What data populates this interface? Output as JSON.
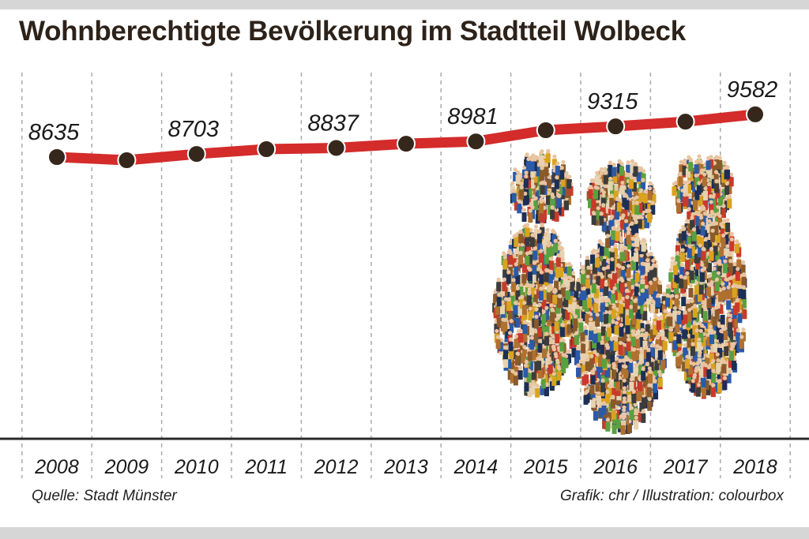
{
  "chart_data": {
    "type": "line",
    "title": "Wohnberechtigte Bevölkerung im Stadtteil Wolbeck",
    "categories": [
      "2008",
      "2009",
      "2010",
      "2011",
      "2012",
      "2013",
      "2014",
      "2015",
      "2016",
      "2017",
      "2018"
    ],
    "values": [
      8635,
      8565,
      8703,
      8810,
      8837,
      8930,
      8981,
      9230,
      9315,
      9420,
      9582
    ],
    "data_labels": [
      "8635",
      null,
      "8703",
      null,
      "8837",
      null,
      "8981",
      null,
      "9315",
      null,
      "9582"
    ],
    "xlabel": "",
    "ylabel": "",
    "grid": "vertical dashed",
    "colors": {
      "line": "#d42b2b",
      "marker": "#35271b",
      "title": "#2d2219"
    }
  },
  "footer": {
    "source": "Quelle: Stadt Münster",
    "credit": "Grafik: chr / Illustration: colourbox"
  }
}
